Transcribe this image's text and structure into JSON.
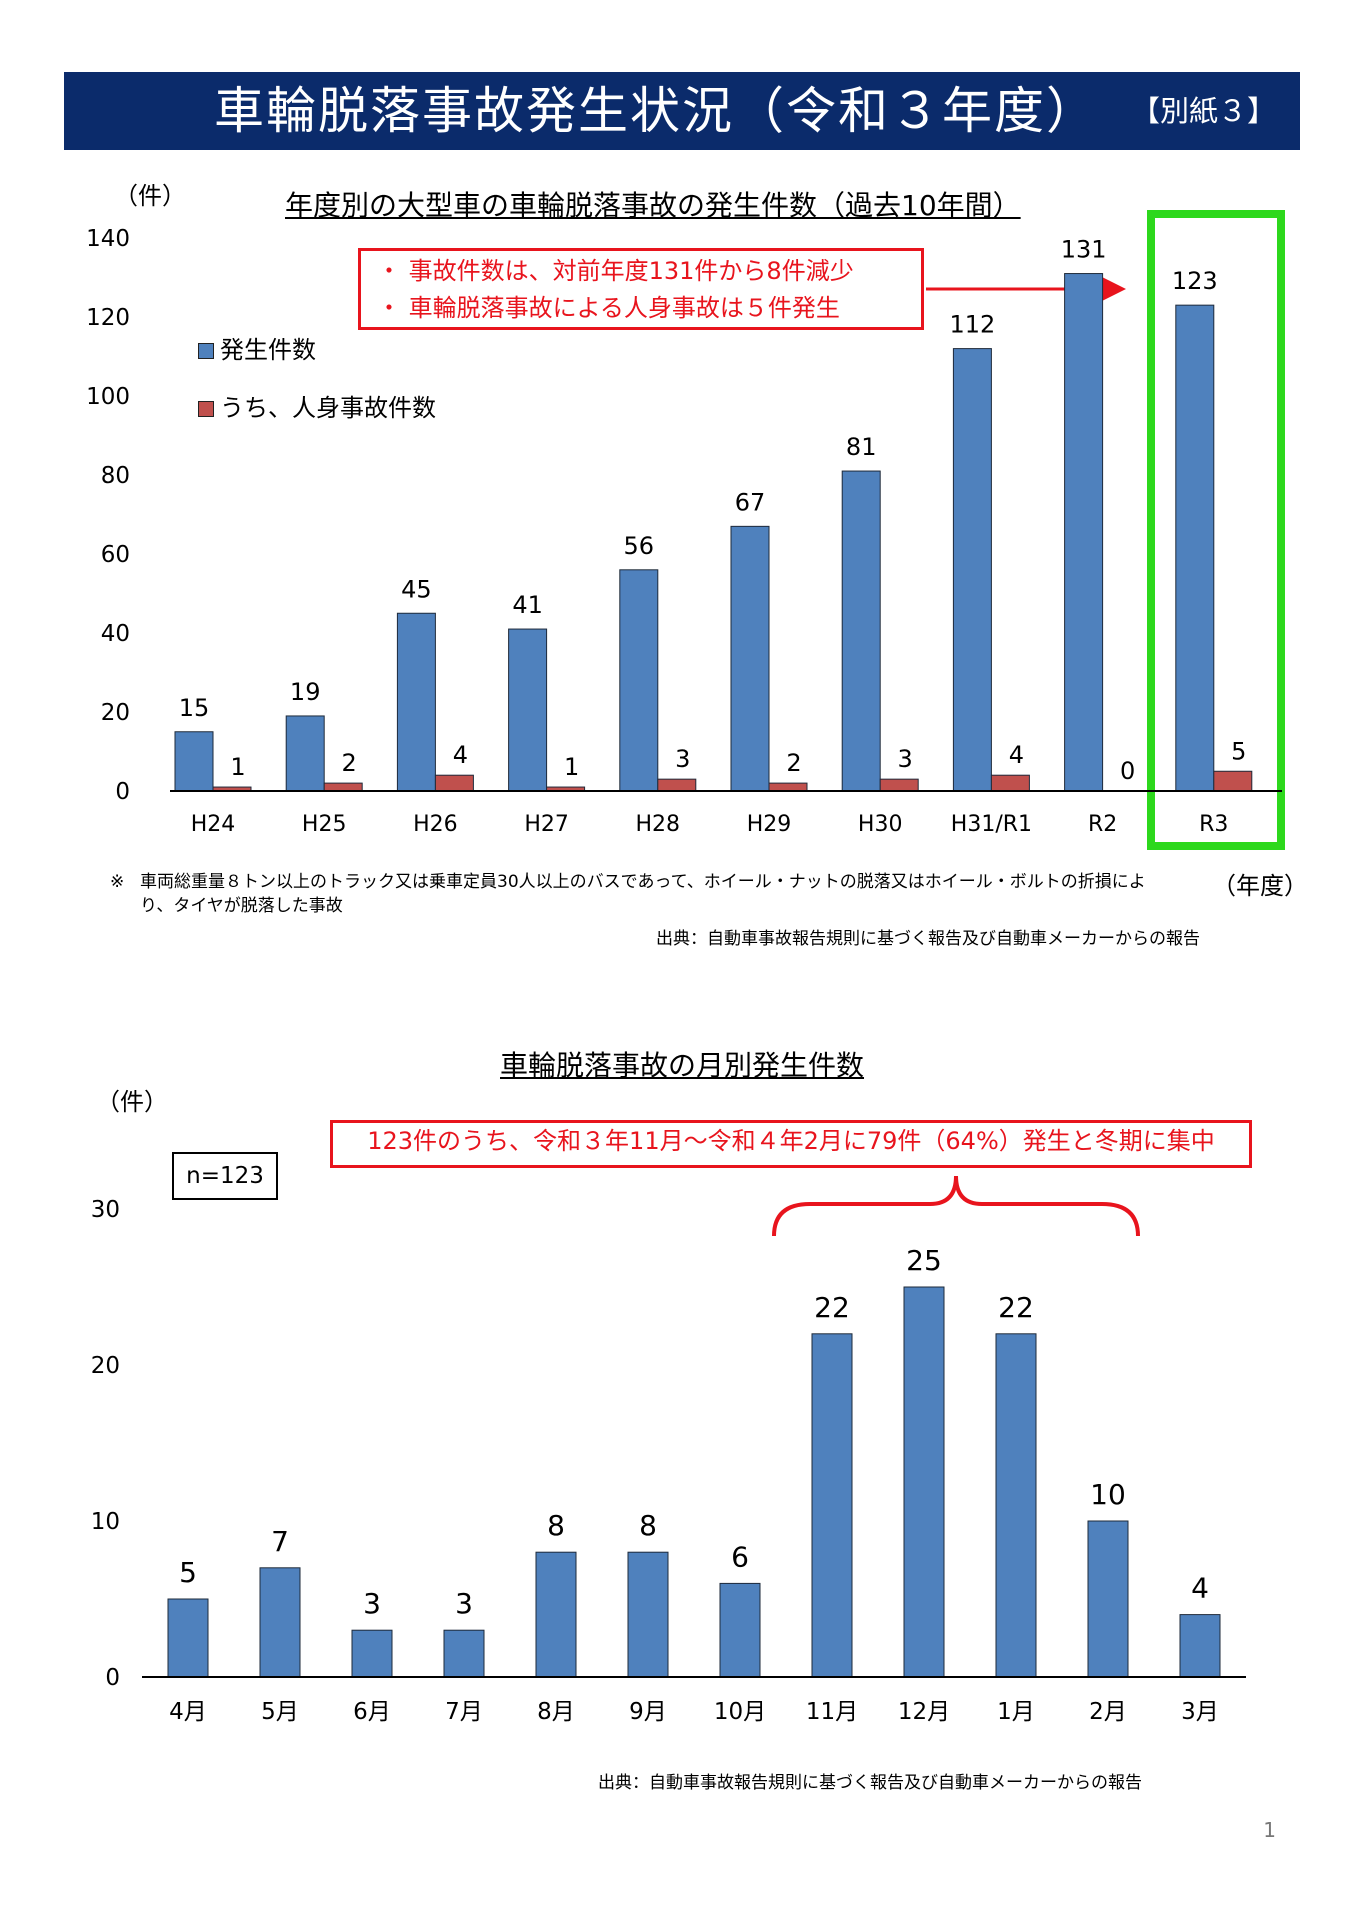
{
  "header": {
    "title": "車輪脱落事故発生状況（令和３年度）",
    "badge": "【別紙３】",
    "bg_color": "#0b2b6b"
  },
  "chart1_text": {
    "title": "年度別の大型車の車輪脱落事故の発生件数（過去10年間）",
    "unit": "（件）",
    "xunit": "（年度）",
    "callout": [
      "・ 事故件数は、対前年度131件から8件減少",
      "・ 車輪脱落事故による人身事故は５件発生"
    ],
    "legend": [
      "発生件数",
      "うち、人身事故件数"
    ],
    "footnote_mark": "※",
    "footnote": "車両総重量８トン以上のトラック又は乗車定員30人以上のバスであって、ホイール・ナットの脱落又はホイール・ボルトの折損により、タイヤが脱落した事故",
    "source": "出典：自動車事故報告規則に基づく報告及び自動車メーカーからの報告"
  },
  "chart2_text": {
    "title": "車輪脱落事故の月別発生件数",
    "unit": "（件）",
    "n_label": "n=123",
    "callout": "123件のうち、令和３年11月～令和４年2月に79件（64%）発生と冬期に集中",
    "source": "出典：自動車事故報告規則に基づく報告及び自動車メーカーからの報告"
  },
  "page_number": "1",
  "chart_data": [
    {
      "type": "bar",
      "title": "年度別の大型車の車輪脱落事故の発生件数（過去10年間）",
      "xlabel": "（年度）",
      "ylabel": "（件）",
      "categories": [
        "H24",
        "H25",
        "H26",
        "H27",
        "H28",
        "H29",
        "H30",
        "H31/R1",
        "R2",
        "R3"
      ],
      "series": [
        {
          "name": "発生件数",
          "color": "#4f81bd",
          "values": [
            15,
            19,
            45,
            41,
            56,
            67,
            81,
            112,
            131,
            123
          ]
        },
        {
          "name": "うち、人身事故件数",
          "color": "#c0504d",
          "values": [
            1,
            2,
            4,
            1,
            3,
            2,
            3,
            4,
            0,
            5
          ]
        }
      ],
      "ylim": [
        0,
        140
      ],
      "yticks": [
        0,
        20,
        40,
        60,
        80,
        100,
        120,
        140
      ],
      "grid": false,
      "legend": "top-left",
      "highlight_category": "R3",
      "highlight_color": "#2dd81c",
      "accent_color": "#e8141d"
    },
    {
      "type": "bar",
      "title": "車輪脱落事故の月別発生件数",
      "ylabel": "（件）",
      "categories": [
        "4月",
        "5月",
        "6月",
        "7月",
        "8月",
        "9月",
        "10月",
        "11月",
        "12月",
        "1月",
        "2月",
        "3月"
      ],
      "series": [
        {
          "color": "#4f81bd",
          "values": [
            5,
            7,
            3,
            3,
            8,
            8,
            6,
            22,
            25,
            22,
            10,
            4
          ]
        }
      ],
      "ylim": [
        0,
        30
      ],
      "yticks": [
        0,
        10,
        20,
        30
      ],
      "grid": false
    }
  ]
}
